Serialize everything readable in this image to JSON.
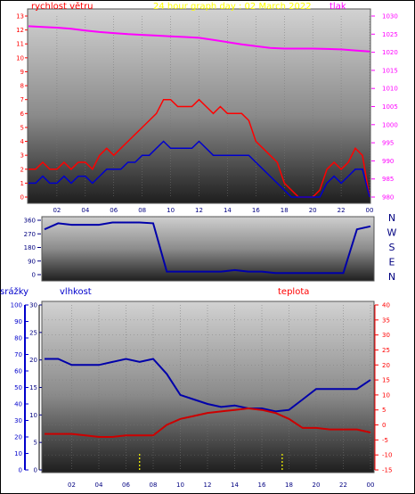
{
  "chart_data": [
    {
      "type": "line",
      "title": "24 hour graph day : 02 March 2022",
      "left_label": "rychlost větru",
      "right_label": "tlak",
      "x_ticks": [
        "02",
        "04",
        "06",
        "08",
        "10",
        "12",
        "14",
        "16",
        "18",
        "20",
        "22",
        "00"
      ],
      "y_left_ticks": [
        "0",
        "1",
        "2",
        "3",
        "4",
        "5",
        "6",
        "7",
        "8",
        "9",
        "10",
        "11",
        "12",
        "13"
      ],
      "y_right_ticks": [
        "980",
        "985",
        "990",
        "995",
        "1000",
        "1005",
        "1010",
        "1015",
        "1020",
        "1025",
        "1030"
      ],
      "ylim_left": [
        0,
        13
      ],
      "ylim_right": [
        980,
        1030
      ],
      "series": [
        {
          "role": "pressure",
          "axis": "right",
          "color": "#ff00ff",
          "x": [
            0,
            1,
            2,
            3,
            4,
            5,
            6,
            7,
            8,
            9,
            10,
            11,
            12,
            13,
            14,
            15,
            16,
            17,
            18,
            19,
            20,
            21,
            22,
            23,
            24
          ],
          "values": [
            1027.2,
            1027.0,
            1026.8,
            1026.5,
            1026.0,
            1025.6,
            1025.3,
            1025.0,
            1024.8,
            1024.6,
            1024.4,
            1024.2,
            1024.0,
            1023.4,
            1022.8,
            1022.2,
            1021.7,
            1021.2,
            1021.0,
            1021.0,
            1021.0,
            1020.9,
            1020.8,
            1020.5,
            1020.2
          ]
        },
        {
          "role": "wind_gust",
          "axis": "left",
          "color": "#ff0000",
          "x": [
            0,
            0.5,
            1,
            1.5,
            2,
            2.5,
            3,
            3.5,
            4,
            4.5,
            5,
            5.5,
            6,
            6.5,
            7,
            7.5,
            8,
            8.5,
            9,
            9.5,
            10,
            10.5,
            11,
            11.5,
            12,
            12.5,
            13,
            13.5,
            14,
            14.5,
            15,
            15.5,
            16,
            16.5,
            17,
            17.5,
            18,
            18.5,
            19,
            19.5,
            20,
            20.5,
            21,
            21.5,
            22,
            22.5,
            23,
            23.5,
            24
          ],
          "values": [
            2,
            2,
            2.5,
            2,
            2,
            2.5,
            2,
            2.5,
            2.5,
            2,
            3,
            3.5,
            3,
            3.5,
            4,
            4.5,
            5,
            5.5,
            6,
            7,
            7,
            6.5,
            6.5,
            6.5,
            7,
            6.5,
            6,
            6.5,
            6,
            6,
            6,
            5.5,
            4,
            3.5,
            3,
            2.5,
            1,
            0.5,
            0,
            0,
            0,
            0.5,
            2,
            2.5,
            2,
            2.5,
            3.5,
            3,
            0
          ]
        },
        {
          "role": "wind_speed",
          "axis": "left",
          "color": "#0000cc",
          "x": [
            0,
            0.5,
            1,
            1.5,
            2,
            2.5,
            3,
            3.5,
            4,
            4.5,
            5,
            5.5,
            6,
            6.5,
            7,
            7.5,
            8,
            8.5,
            9,
            9.5,
            10,
            10.5,
            11,
            11.5,
            12,
            12.5,
            13,
            13.5,
            14,
            14.5,
            15,
            15.5,
            16,
            16.5,
            17,
            17.5,
            18,
            18.5,
            19,
            19.5,
            20,
            20.5,
            21,
            21.5,
            22,
            22.5,
            23,
            23.5,
            24
          ],
          "values": [
            1,
            1,
            1.5,
            1,
            1,
            1.5,
            1,
            1.5,
            1.5,
            1,
            1.5,
            2,
            2,
            2,
            2.5,
            2.5,
            3,
            3,
            3.5,
            4,
            3.5,
            3.5,
            3.5,
            3.5,
            4,
            3.5,
            3,
            3,
            3,
            3,
            3,
            3,
            2.5,
            2,
            1.5,
            1,
            0.5,
            0,
            0,
            0,
            0,
            0,
            1,
            1.5,
            1,
            1.5,
            2,
            2,
            0
          ]
        }
      ]
    },
    {
      "type": "line",
      "y_ticks": [
        "0",
        "90",
        "180",
        "270",
        "360"
      ],
      "ylim": [
        0,
        360
      ],
      "side_labels": [
        "N",
        "W",
        "S",
        "E",
        "N"
      ],
      "series": [
        {
          "role": "wind_direction",
          "color": "#0000aa",
          "x": [
            0,
            1,
            2,
            3,
            4,
            5,
            6,
            7,
            8,
            9,
            10,
            11,
            12,
            13,
            14,
            15,
            16,
            17,
            18,
            19,
            20,
            21,
            22,
            23,
            24
          ],
          "values": [
            300,
            340,
            330,
            330,
            330,
            345,
            345,
            345,
            340,
            20,
            20,
            20,
            20,
            20,
            30,
            20,
            20,
            10,
            10,
            10,
            10,
            10,
            10,
            300,
            320
          ]
        }
      ]
    },
    {
      "type": "line",
      "left_label": "srážky",
      "mid_label": "vlhkost",
      "right_label": "teplota",
      "x_ticks": [
        "02",
        "04",
        "06",
        "08",
        "10",
        "12",
        "14",
        "16",
        "18",
        "20",
        "22",
        "00"
      ],
      "y_rain_ticks": [
        "0",
        "10",
        "20",
        "30",
        "40",
        "50",
        "60",
        "70",
        "80",
        "90",
        "100"
      ],
      "y_hum_ticks": [
        "0",
        "5",
        "10",
        "15",
        "20",
        "25",
        "30"
      ],
      "y_temp_ticks": [
        "-15",
        "-10",
        "-5",
        "0",
        "5",
        "10",
        "15",
        "20",
        "25",
        "30",
        "35",
        "40"
      ],
      "ylim_temp": [
        -15,
        40
      ],
      "ylim_hum": [
        0,
        30
      ],
      "series": [
        {
          "role": "humidity",
          "axis": "temp",
          "color": "#0000aa",
          "x": [
            0,
            1,
            2,
            3,
            4,
            5,
            6,
            7,
            8,
            9,
            10,
            11,
            12,
            13,
            14,
            15,
            16,
            17,
            18,
            19,
            20,
            21,
            22,
            23,
            24
          ],
          "values": [
            22,
            22,
            20,
            20,
            20,
            21,
            22,
            21,
            22,
            17,
            10,
            8.5,
            7,
            6,
            6.5,
            5.5,
            5.5,
            4.5,
            5,
            8.5,
            12,
            12,
            12,
            12,
            15
          ]
        },
        {
          "role": "temperature",
          "axis": "temp",
          "color": "#cc0000",
          "x": [
            0,
            1,
            2,
            3,
            4,
            5,
            6,
            7,
            8,
            9,
            10,
            11,
            12,
            13,
            14,
            15,
            16,
            17,
            18,
            19,
            20,
            21,
            22,
            23,
            24
          ],
          "values": [
            -3,
            -3,
            -3,
            -3.5,
            -4,
            -4,
            -3.5,
            -3.5,
            -3.5,
            0,
            2,
            3,
            4,
            4.5,
            5,
            5.5,
            5,
            4,
            2,
            -1,
            -1,
            -1.5,
            -1.5,
            -1.5,
            -2.5
          ]
        },
        {
          "role": "rain_marker",
          "axis": "none",
          "color": "#ffff00",
          "x": [
            7.0,
            17.5
          ],
          "values": [
            1,
            1
          ]
        }
      ]
    }
  ]
}
